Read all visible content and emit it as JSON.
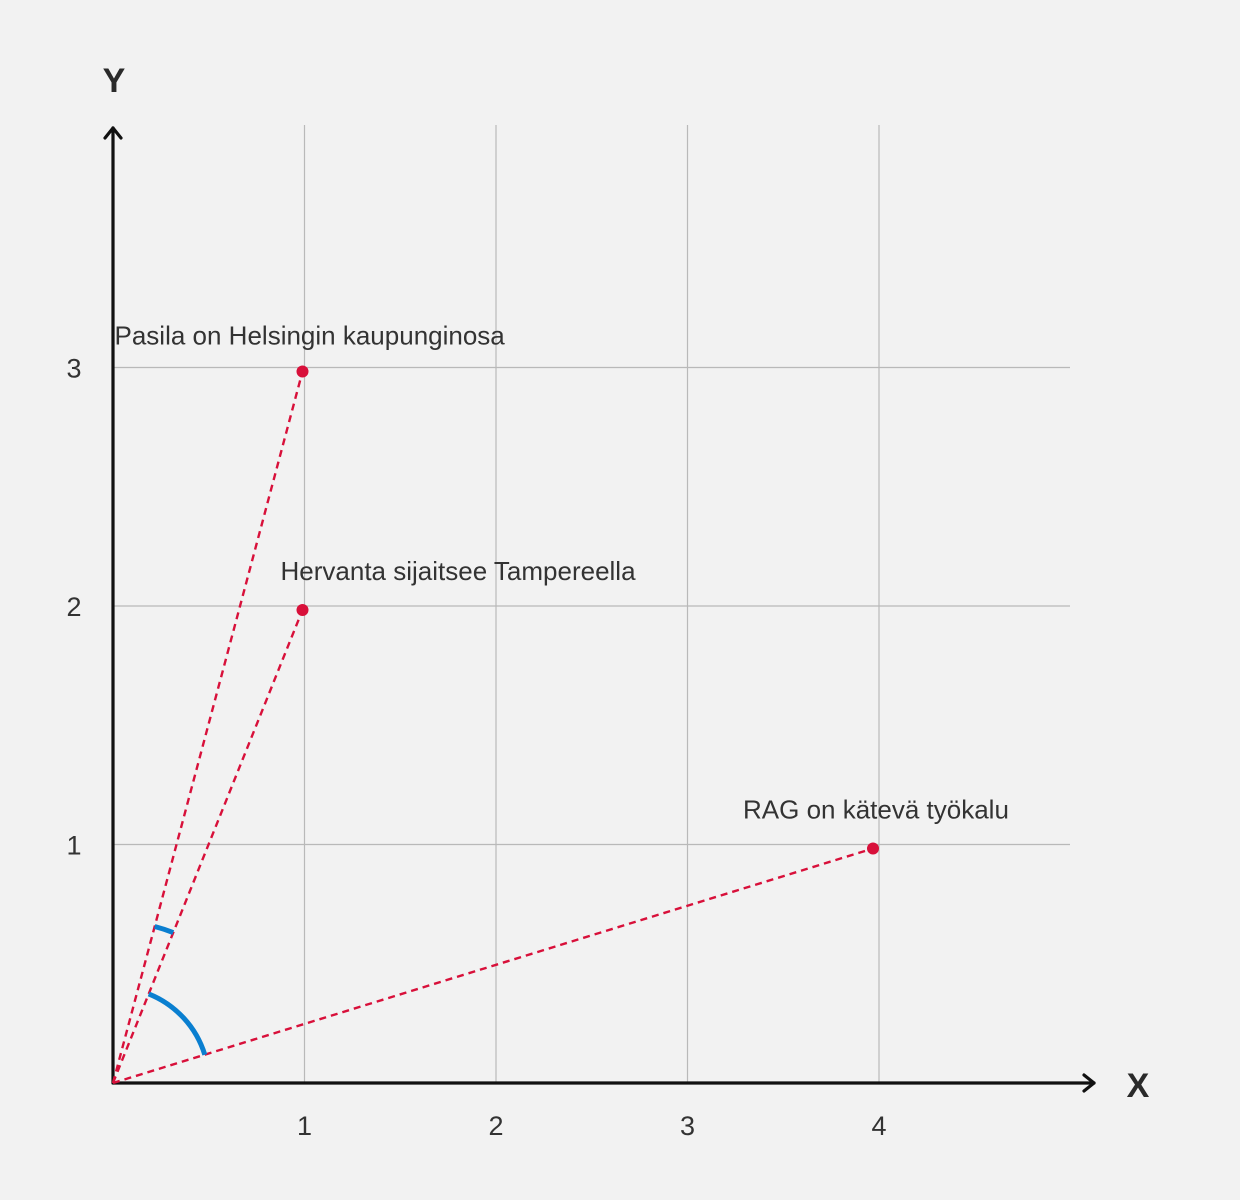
{
  "diagram": {
    "axes": {
      "x_label": "X",
      "y_label": "Y",
      "x_ticks": [
        "1",
        "2",
        "3",
        "4"
      ],
      "y_ticks": [
        "1",
        "2",
        "3"
      ],
      "x_range": [
        0,
        5
      ],
      "y_range": [
        0,
        4
      ],
      "grid": true
    },
    "points": [
      {
        "label": "Pasila on Helsingin kaupunginosa",
        "x": 1,
        "y": 3
      },
      {
        "label": "Hervanta sijaitsee Tampereella",
        "x": 1,
        "y": 2
      },
      {
        "label": "RAG on kätevä työkalu",
        "x": 4,
        "y": 1
      }
    ],
    "angle_arcs": [
      {
        "between": [
          0,
          1
        ],
        "size": "small"
      },
      {
        "between": [
          1,
          2
        ],
        "size": "large"
      }
    ],
    "colors": {
      "background": "#f2f2f2",
      "vector": "#d8103a",
      "arc": "#0a7fd0",
      "axis": "#111111",
      "grid": "#b9b9b9"
    }
  }
}
